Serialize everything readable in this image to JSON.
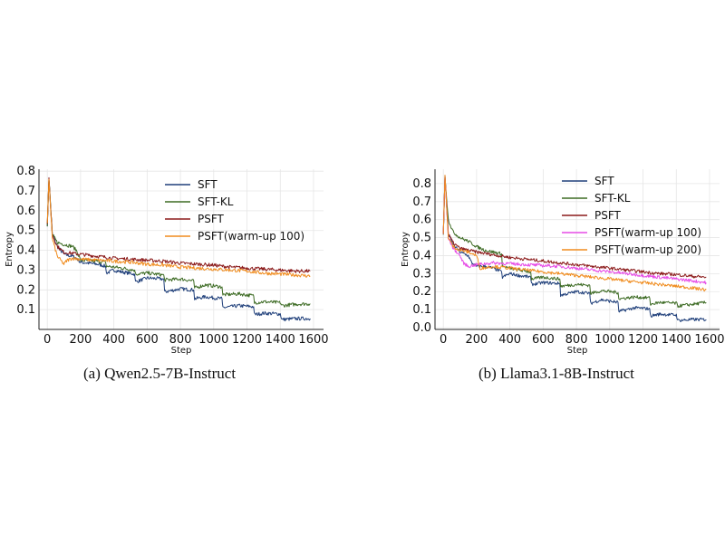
{
  "chart_data": [
    {
      "type": "line",
      "caption": "(a) Qwen2.5-7B-Instruct",
      "xlabel": "Step",
      "ylabel": "Entropy",
      "xlim": [
        -50,
        1660
      ],
      "ylim": [
        0.0,
        0.81
      ],
      "xticks": [
        0,
        200,
        400,
        600,
        800,
        1000,
        1200,
        1400,
        1600
      ],
      "yticks": [
        0.1,
        0.2,
        0.3,
        0.4,
        0.5,
        0.6,
        0.7,
        0.8
      ],
      "grid": true,
      "legend_position": "top-right",
      "series": [
        {
          "name": "SFT",
          "color": "#1f3f7a",
          "x": [
            0,
            10,
            30,
            60,
            100,
            150,
            175,
            200,
            250,
            300,
            350,
            355,
            400,
            450,
            525,
            530,
            600,
            700,
            705,
            800,
            880,
            885,
            950,
            1050,
            1055,
            1150,
            1240,
            1245,
            1300,
            1400,
            1410,
            1500,
            1580
          ],
          "y": [
            0.53,
            0.76,
            0.48,
            0.42,
            0.38,
            0.37,
            0.36,
            0.34,
            0.335,
            0.33,
            0.32,
            0.285,
            0.3,
            0.29,
            0.28,
            0.24,
            0.26,
            0.255,
            0.19,
            0.205,
            0.2,
            0.155,
            0.165,
            0.155,
            0.11,
            0.12,
            0.115,
            0.075,
            0.082,
            0.078,
            0.05,
            0.055,
            0.055
          ]
        },
        {
          "name": "SFT-KL",
          "color": "#3d6b24",
          "x": [
            0,
            10,
            30,
            60,
            100,
            150,
            175,
            200,
            300,
            350,
            355,
            450,
            525,
            530,
            600,
            700,
            705,
            800,
            880,
            885,
            950,
            1050,
            1055,
            1150,
            1240,
            1245,
            1300,
            1400,
            1410,
            1500,
            1580
          ],
          "y": [
            0.53,
            0.76,
            0.48,
            0.44,
            0.43,
            0.42,
            0.4,
            0.35,
            0.345,
            0.34,
            0.32,
            0.31,
            0.3,
            0.28,
            0.285,
            0.275,
            0.25,
            0.255,
            0.245,
            0.21,
            0.225,
            0.215,
            0.175,
            0.18,
            0.17,
            0.135,
            0.14,
            0.135,
            0.12,
            0.128,
            0.13
          ]
        },
        {
          "name": "PSFT",
          "color": "#8b1a1a",
          "x": [
            0,
            10,
            30,
            60,
            100,
            200,
            300,
            400,
            500,
            600,
            700,
            800,
            900,
            1000,
            1100,
            1200,
            1300,
            1400,
            1500,
            1580
          ],
          "y": [
            0.53,
            0.76,
            0.48,
            0.42,
            0.39,
            0.38,
            0.37,
            0.36,
            0.355,
            0.35,
            0.345,
            0.335,
            0.33,
            0.325,
            0.315,
            0.31,
            0.305,
            0.3,
            0.295,
            0.295
          ]
        },
        {
          "name": "PSFT(warm-up 100)",
          "color": "#f08c1e",
          "x": [
            0,
            10,
            30,
            60,
            100,
            120,
            150,
            200,
            300,
            400,
            500,
            600,
            700,
            800,
            900,
            1000,
            1100,
            1200,
            1300,
            1400,
            1500,
            1580
          ],
          "y": [
            0.53,
            0.76,
            0.46,
            0.37,
            0.33,
            0.35,
            0.36,
            0.355,
            0.35,
            0.345,
            0.34,
            0.33,
            0.325,
            0.315,
            0.31,
            0.305,
            0.3,
            0.295,
            0.285,
            0.28,
            0.275,
            0.27
          ]
        }
      ]
    },
    {
      "type": "line",
      "caption": "(b) Llama3.1-8B-Instruct",
      "xlabel": "Step",
      "ylabel": "Entropy",
      "xlim": [
        -50,
        1660
      ],
      "ylim": [
        -0.01,
        0.88
      ],
      "xticks": [
        0,
        200,
        400,
        600,
        800,
        1000,
        1200,
        1400,
        1600
      ],
      "yticks": [
        0.0,
        0.1,
        0.2,
        0.3,
        0.4,
        0.5,
        0.6,
        0.7,
        0.8
      ],
      "grid": true,
      "legend_position": "top-right",
      "series": [
        {
          "name": "SFT",
          "color": "#1f3f7a",
          "x": [
            0,
            10,
            30,
            60,
            100,
            150,
            170,
            200,
            250,
            300,
            350,
            355,
            400,
            450,
            525,
            530,
            600,
            700,
            705,
            800,
            880,
            885,
            950,
            1050,
            1055,
            1150,
            1240,
            1245,
            1300,
            1400,
            1410,
            1500,
            1580
          ],
          "y": [
            0.52,
            0.84,
            0.52,
            0.46,
            0.42,
            0.4,
            0.36,
            0.34,
            0.34,
            0.33,
            0.31,
            0.28,
            0.3,
            0.29,
            0.28,
            0.24,
            0.25,
            0.245,
            0.18,
            0.2,
            0.19,
            0.135,
            0.155,
            0.14,
            0.09,
            0.11,
            0.105,
            0.065,
            0.075,
            0.07,
            0.04,
            0.045,
            0.045
          ]
        },
        {
          "name": "SFT-KL",
          "color": "#3d6b24",
          "x": [
            0,
            10,
            30,
            60,
            100,
            150,
            200,
            250,
            300,
            350,
            355,
            400,
            450,
            525,
            530,
            600,
            700,
            705,
            800,
            880,
            885,
            950,
            1050,
            1055,
            1150,
            1240,
            1245,
            1300,
            1400,
            1410,
            1500,
            1580
          ],
          "y": [
            0.52,
            0.84,
            0.6,
            0.53,
            0.5,
            0.48,
            0.45,
            0.43,
            0.42,
            0.41,
            0.34,
            0.33,
            0.32,
            0.31,
            0.27,
            0.28,
            0.27,
            0.23,
            0.24,
            0.235,
            0.19,
            0.205,
            0.195,
            0.16,
            0.17,
            0.165,
            0.13,
            0.14,
            0.135,
            0.12,
            0.13,
            0.14
          ]
        },
        {
          "name": "PSFT",
          "color": "#8b1a1a",
          "x": [
            0,
            10,
            30,
            60,
            100,
            200,
            300,
            400,
            500,
            600,
            700,
            800,
            900,
            1000,
            1100,
            1200,
            1300,
            1400,
            1500,
            1580
          ],
          "y": [
            0.52,
            0.84,
            0.52,
            0.47,
            0.44,
            0.42,
            0.405,
            0.39,
            0.38,
            0.37,
            0.36,
            0.35,
            0.34,
            0.33,
            0.32,
            0.31,
            0.3,
            0.295,
            0.285,
            0.28
          ]
        },
        {
          "name": "PSFT(warm-up 100)",
          "color": "#e64be6",
          "x": [
            0,
            10,
            30,
            60,
            100,
            120,
            150,
            200,
            300,
            400,
            500,
            600,
            700,
            800,
            900,
            1000,
            1100,
            1200,
            1300,
            1400,
            1500,
            1580
          ],
          "y": [
            0.52,
            0.84,
            0.5,
            0.44,
            0.4,
            0.36,
            0.34,
            0.35,
            0.36,
            0.355,
            0.35,
            0.345,
            0.34,
            0.33,
            0.32,
            0.31,
            0.3,
            0.29,
            0.28,
            0.27,
            0.26,
            0.25
          ]
        },
        {
          "name": "PSFT(warm-up 200)",
          "color": "#f08c1e",
          "x": [
            0,
            10,
            30,
            60,
            100,
            150,
            200,
            220,
            300,
            400,
            500,
            600,
            700,
            800,
            900,
            1000,
            1100,
            1200,
            1300,
            1400,
            1500,
            1580
          ],
          "y": [
            0.52,
            0.84,
            0.5,
            0.45,
            0.43,
            0.42,
            0.4,
            0.33,
            0.34,
            0.33,
            0.32,
            0.31,
            0.3,
            0.29,
            0.28,
            0.27,
            0.26,
            0.25,
            0.24,
            0.23,
            0.22,
            0.21
          ]
        }
      ]
    }
  ]
}
